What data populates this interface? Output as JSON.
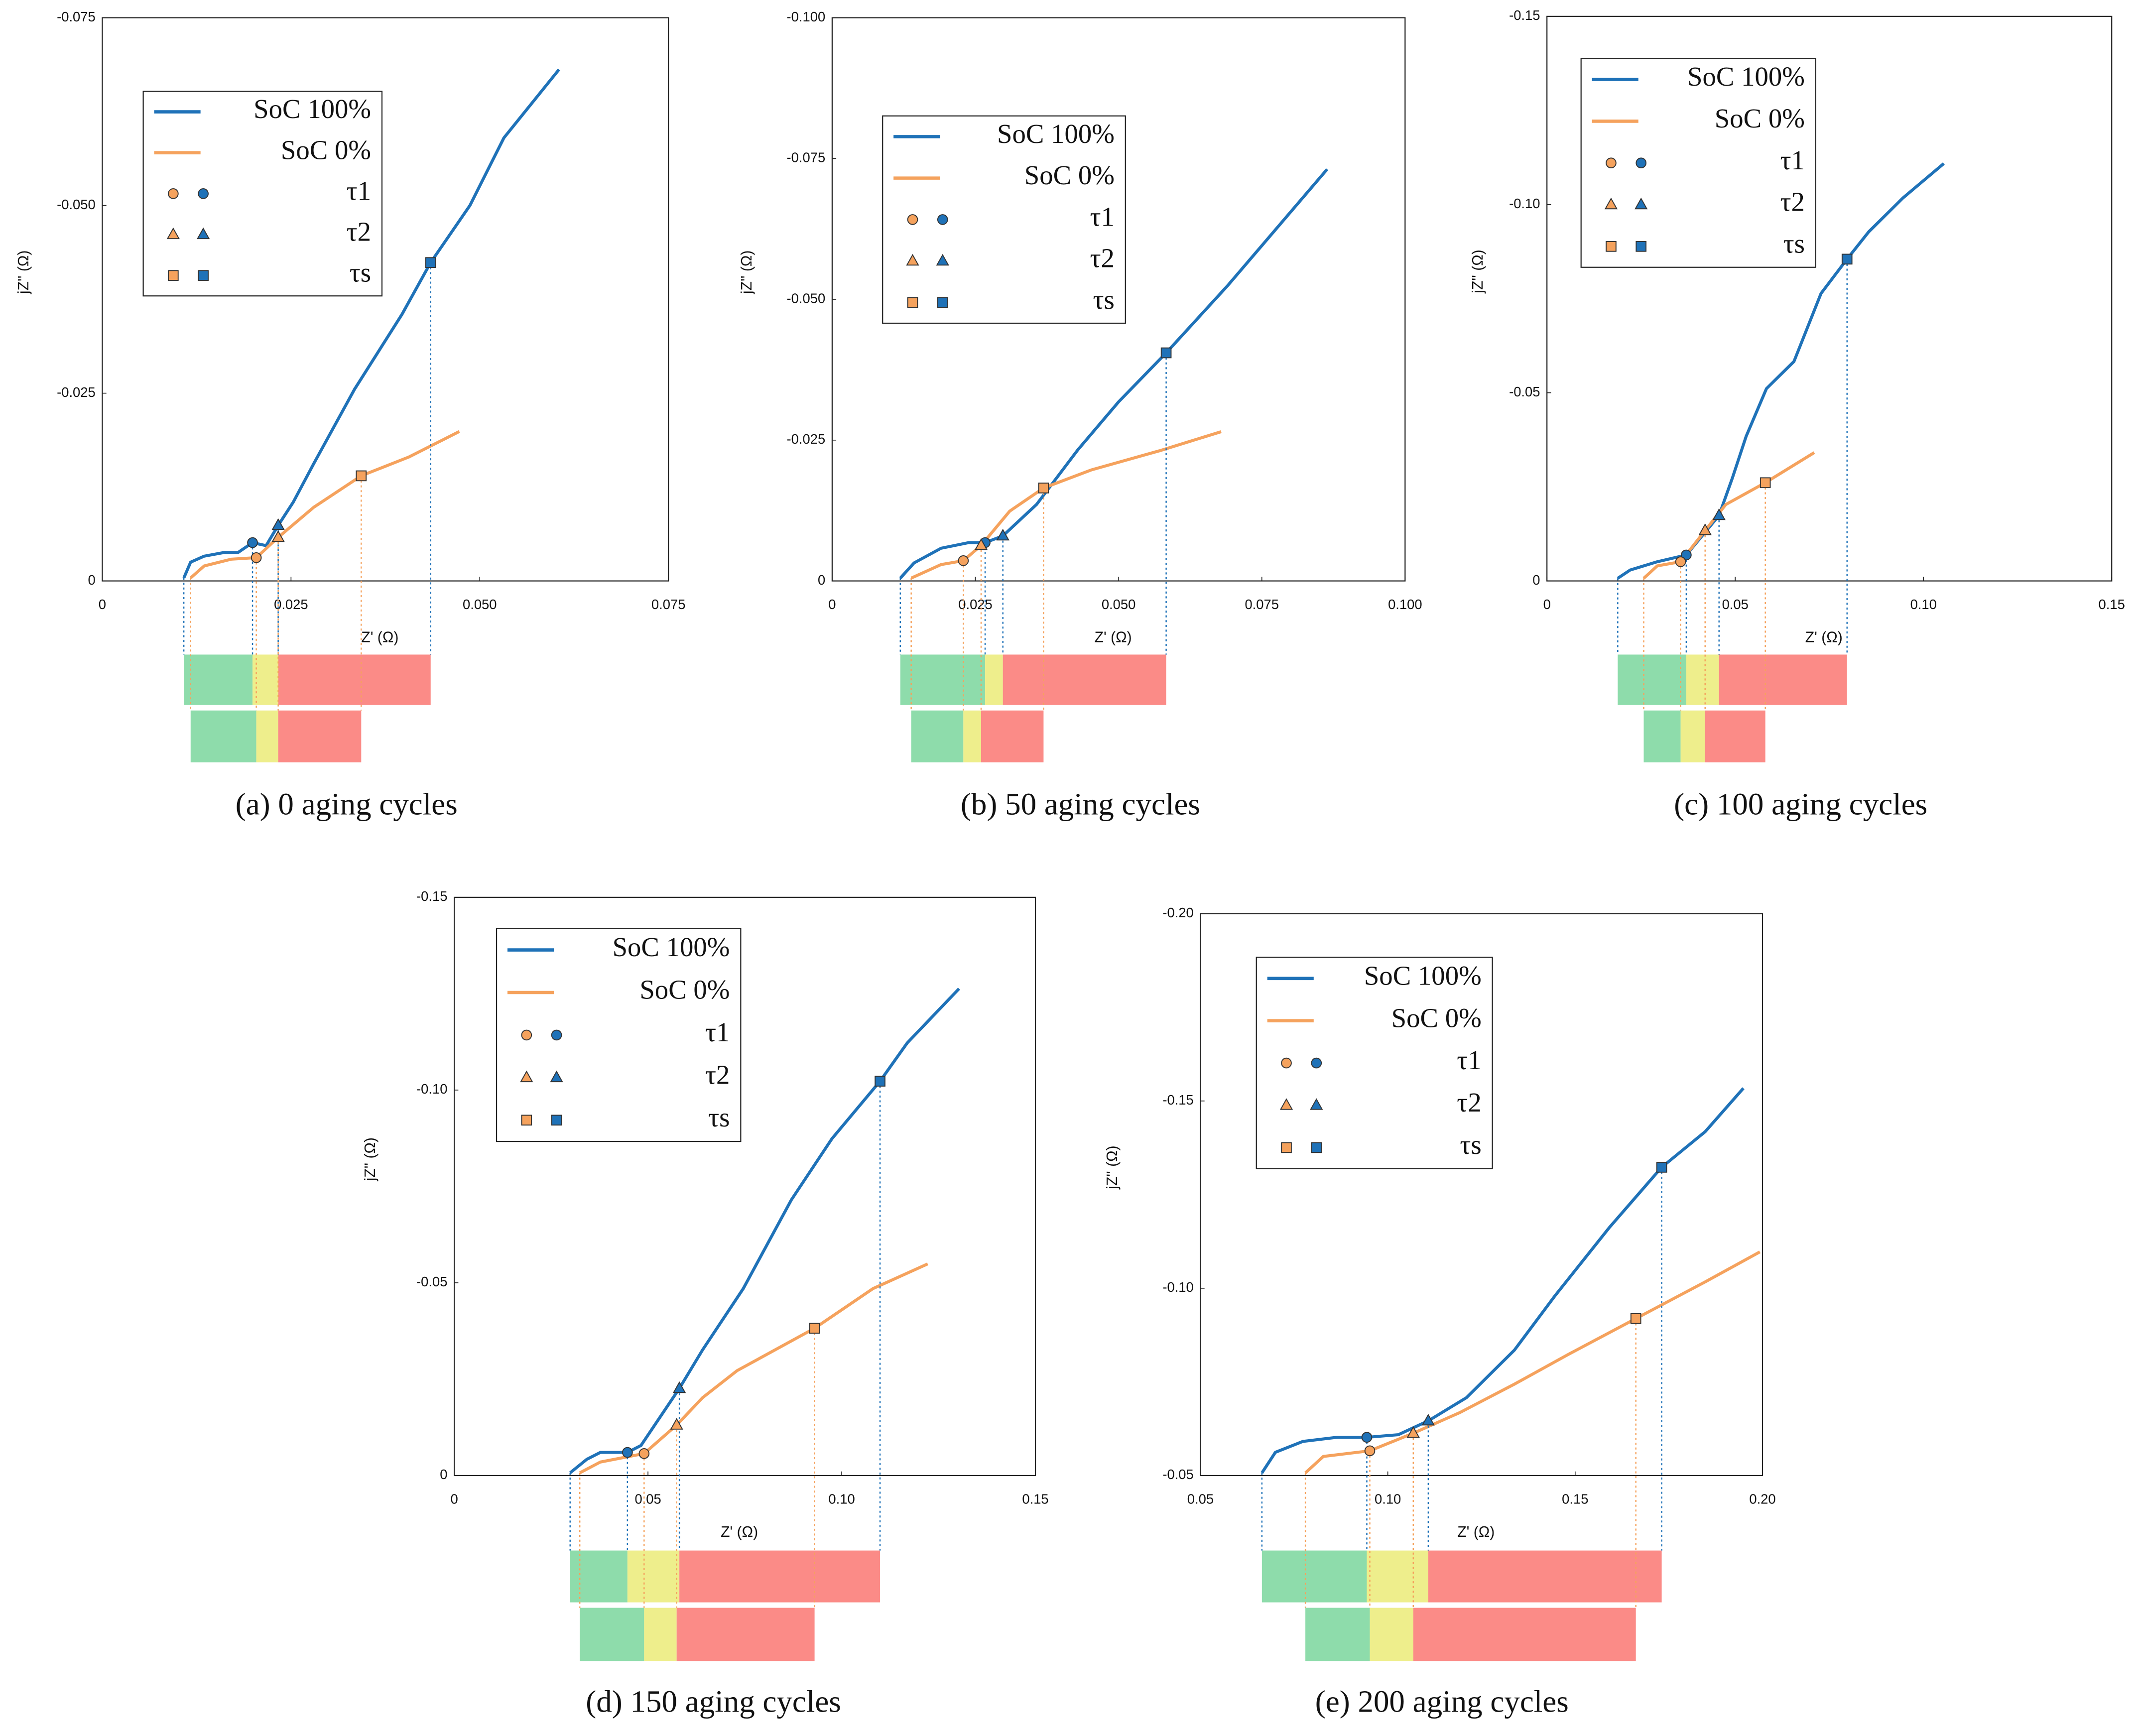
{
  "interval_colors": [
    "#8edcab",
    "#eeee8c",
    "#fb8b87"
  ],
  "chart_data": [
    {
      "type": "line",
      "caption": "(a) 0 aging cycles",
      "x_label": "Z' (Ω)",
      "y_label": "jZ'' (Ω)",
      "xlim": [
        0,
        0.075
      ],
      "xticks": [
        0,
        0.025,
        {
          "value": 0.05,
          "label": "0.050"
        },
        0.075
      ],
      "ylim": [
        0,
        -0.075
      ],
      "yticks": [
        0,
        -0.025,
        {
          "value": -0.05,
          "label": "-0.050"
        },
        -0.075
      ],
      "marker_names": [
        "τ1",
        "τ2",
        "τs"
      ],
      "series": [
        {
          "name": "SoC 100%",
          "color": "#1f72b8",
          "x": [
            0.0108,
            0.0117,
            0.0135,
            0.0162,
            0.018,
            0.0199,
            0.0217,
            0.0233,
            0.0253,
            0.028,
            0.0334,
            0.0397,
            0.0435,
            0.0487,
            0.0532,
            0.0605
          ],
          "values": [
            -0.0004,
            -0.0025,
            -0.0033,
            -0.0038,
            -0.0038,
            -0.0051,
            -0.0047,
            -0.0074,
            -0.0105,
            -0.0156,
            -0.0255,
            -0.0355,
            -0.0424,
            -0.05,
            -0.059,
            -0.0681
          ],
          "tau_x": [
            0.0199,
            0.0233,
            0.0435
          ],
          "tau_y": [
            -0.0051,
            -0.0074,
            -0.0424
          ]
        },
        {
          "name": "SoC 0%",
          "color": "#f5a25d",
          "x": [
            0.0117,
            0.0135,
            0.0171,
            0.0204,
            0.0233,
            0.028,
            0.0343,
            0.0406,
            0.0473
          ],
          "values": [
            -0.0004,
            -0.002,
            -0.0029,
            -0.0031,
            -0.0058,
            -0.0098,
            -0.014,
            -0.0165,
            -0.0199
          ],
          "tau_x": [
            0.0204,
            0.0233,
            0.0343
          ],
          "tau_y": [
            -0.0031,
            -0.0058,
            -0.014
          ]
        }
      ]
    },
    {
      "type": "line",
      "caption": "(b) 50 aging cycles",
      "x_label": "Z' (Ω)",
      "y_label": "jZ'' (Ω)",
      "xlim": [
        0,
        0.1
      ],
      "xticks": [
        0,
        0.025,
        {
          "value": 0.05,
          "label": "0.050"
        },
        0.075,
        {
          "value": 0.1,
          "label": "0.100"
        }
      ],
      "ylim": [
        0,
        -0.1
      ],
      "yticks": [
        0,
        -0.025,
        {
          "value": -0.05,
          "label": "-0.050"
        },
        -0.075,
        {
          "value": -0.1,
          "label": "-0.100"
        }
      ],
      "marker_names": [
        "τ1",
        "τ2",
        "τs"
      ],
      "series": [
        {
          "name": "SoC 100%",
          "color": "#1f72b8",
          "x": [
            0.0119,
            0.0143,
            0.019,
            0.0238,
            0.0267,
            0.0298,
            0.0357,
            0.0429,
            0.05,
            0.0583,
            0.069,
            0.0864
          ],
          "values": [
            -0.0005,
            -0.0032,
            -0.0058,
            -0.0068,
            -0.0068,
            -0.008,
            -0.0136,
            -0.0233,
            -0.0318,
            -0.0405,
            -0.0524,
            -0.0731
          ],
          "tau_x": [
            0.0267,
            0.0298,
            0.0583
          ],
          "tau_y": [
            -0.0068,
            -0.008,
            -0.0405
          ]
        },
        {
          "name": "SoC 0%",
          "color": "#f5a25d",
          "x": [
            0.0138,
            0.019,
            0.0229,
            0.026,
            0.031,
            0.0369,
            0.0452,
            0.0571,
            0.0679
          ],
          "values": [
            -0.0005,
            -0.0029,
            -0.0036,
            -0.0063,
            -0.0124,
            -0.0165,
            -0.0197,
            -0.0231,
            -0.0265
          ],
          "tau_x": [
            0.0229,
            0.026,
            0.0369
          ],
          "tau_y": [
            -0.0036,
            -0.0063,
            -0.0165
          ]
        }
      ]
    },
    {
      "type": "line",
      "caption": "(c) 100 aging cycles",
      "x_label": "Z' (Ω)",
      "y_label": "jZ'' (Ω)",
      "xlim": [
        0,
        0.15
      ],
      "xticks": [
        0,
        0.05,
        {
          "value": 0.1,
          "label": "0.10"
        },
        0.15
      ],
      "ylim": [
        0,
        -0.15
      ],
      "yticks": [
        0,
        -0.05,
        {
          "value": -0.1,
          "label": "-0.10"
        },
        -0.15
      ],
      "marker_names": [
        "τ1",
        "τ2",
        "τs"
      ],
      "series": [
        {
          "name": "SoC 100%",
          "color": "#1f72b8",
          "x": [
            0.0188,
            0.0221,
            0.0293,
            0.037,
            0.0457,
            0.0493,
            0.0529,
            0.0583,
            0.0656,
            0.0728,
            0.0797,
            0.0855,
            0.0946,
            0.1054
          ],
          "values": [
            -0.0007,
            -0.0029,
            -0.0051,
            -0.0069,
            -0.0174,
            -0.0275,
            -0.0384,
            -0.0511,
            -0.0583,
            -0.0764,
            -0.0855,
            -0.0928,
            -0.1018,
            -0.1109
          ],
          "tau_x": [
            0.037,
            0.0457,
            0.0797
          ],
          "tau_y": [
            -0.0069,
            -0.0174,
            -0.0855
          ]
        },
        {
          "name": "SoC 0%",
          "color": "#f5a25d",
          "x": [
            0.0257,
            0.0293,
            0.0355,
            0.042,
            0.0475,
            0.058,
            0.071
          ],
          "values": [
            -0.0007,
            -0.004,
            -0.0051,
            -0.0134,
            -0.0203,
            -0.0261,
            -0.0341
          ],
          "tau_x": [
            0.0355,
            0.042,
            0.058
          ],
          "tau_y": [
            -0.0051,
            -0.0134,
            -0.0261
          ]
        }
      ]
    },
    {
      "type": "line",
      "caption": "(d) 150 aging cycles",
      "x_label": "Z' (Ω)",
      "y_label": "jZ'' (Ω)",
      "xlim": [
        0,
        0.15
      ],
      "xticks": [
        0,
        0.05,
        {
          "value": 0.1,
          "label": "0.10"
        },
        0.15
      ],
      "ylim": [
        0,
        -0.15
      ],
      "yticks": [
        0,
        -0.05,
        {
          "value": -0.1,
          "label": "-0.10"
        },
        -0.15
      ],
      "marker_names": [
        "τ1",
        "τ2",
        "τs"
      ],
      "series": [
        {
          "name": "SoC 100%",
          "color": "#1f72b8",
          "x": [
            0.0299,
            0.0342,
            0.0377,
            0.0447,
            0.0482,
            0.0581,
            0.0641,
            0.0746,
            0.087,
            0.0975,
            0.1099,
            0.1169,
            0.1303
          ],
          "values": [
            -0.0007,
            -0.0042,
            -0.006,
            -0.006,
            -0.0078,
            -0.0226,
            -0.0326,
            -0.0485,
            -0.0715,
            -0.0874,
            -0.1023,
            -0.1122,
            -0.1263
          ],
          "tau_x": [
            0.0447,
            0.0581,
            0.1099
          ],
          "tau_y": [
            -0.006,
            -0.0226,
            -0.1023
          ]
        },
        {
          "name": "SoC 0%",
          "color": "#f5a25d",
          "x": [
            0.0324,
            0.0377,
            0.049,
            0.0574,
            0.0641,
            0.073,
            0.093,
            0.1081,
            0.1222
          ],
          "values": [
            -0.0007,
            -0.0035,
            -0.0057,
            -0.0131,
            -0.0202,
            -0.0272,
            -0.0382,
            -0.0485,
            -0.0549
          ],
          "tau_x": [
            0.049,
            0.0574,
            0.093
          ],
          "tau_y": [
            -0.0057,
            -0.0131,
            -0.0382
          ]
        }
      ]
    },
    {
      "type": "line",
      "caption": "(e) 200 aging cycles",
      "x_label": "Z' (Ω)",
      "y_label": "jZ'' (Ω)",
      "xlim": [
        0.05,
        0.2
      ],
      "xticks": [
        0.05,
        {
          "value": 0.1,
          "label": "0.10"
        },
        0.15,
        {
          "value": 0.2,
          "label": "0.20"
        }
      ],
      "ylim": [
        -0.05,
        -0.2
      ],
      "yticks": [
        -0.05,
        {
          "value": -0.1,
          "label": "-0.10"
        },
        -0.15,
        {
          "value": -0.2,
          "label": "-0.20"
        }
      ],
      "marker_names": [
        "τ1",
        "τ2",
        "τs"
      ],
      "series": [
        {
          "name": "SoC 100%",
          "color": "#1f72b8",
          "x": [
            0.0664,
            0.07,
            0.0773,
            0.0864,
            0.0944,
            0.1028,
            0.1108,
            0.121,
            0.1338,
            0.1447,
            0.1592,
            0.1731,
            0.1847,
            0.1949
          ],
          "values": [
            -0.0507,
            -0.0562,
            -0.0591,
            -0.0602,
            -0.0602,
            -0.0609,
            -0.0646,
            -0.0708,
            -0.0835,
            -0.0981,
            -0.1163,
            -0.1323,
            -0.1418,
            -0.1534
          ],
          "tau_x": [
            0.0944,
            0.1108,
            0.1731
          ],
          "tau_y": [
            -0.0602,
            -0.0646,
            -0.1323
          ]
        },
        {
          "name": "SoC 0%",
          "color": "#f5a25d",
          "x": [
            0.078,
            0.0828,
            0.0952,
            0.1068,
            0.1192,
            0.1338,
            0.1483,
            0.1662,
            0.1847,
            0.1993
          ],
          "values": [
            -0.0507,
            -0.0551,
            -0.0566,
            -0.0613,
            -0.0668,
            -0.0744,
            -0.0824,
            -0.0919,
            -0.1017,
            -0.1097
          ],
          "tau_x": [
            0.0952,
            0.1068,
            0.1662
          ],
          "tau_y": [
            -0.0566,
            -0.0613,
            -0.0919
          ]
        }
      ]
    }
  ]
}
